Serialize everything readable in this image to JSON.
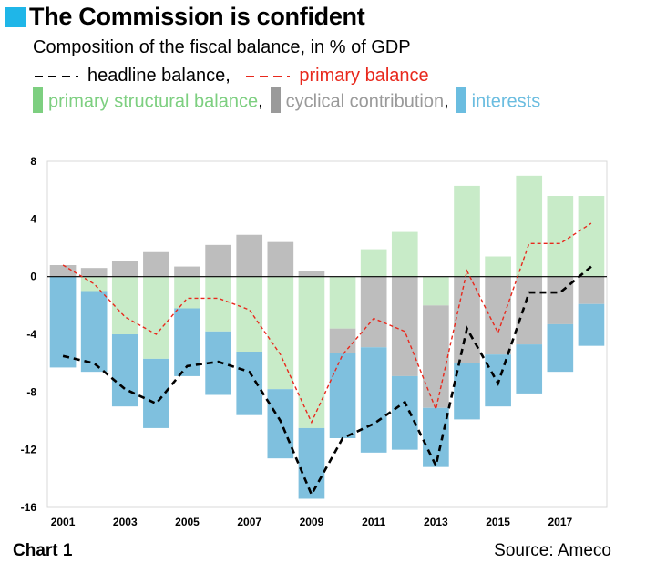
{
  "header": {
    "title": "The Commission is confident",
    "subtitle": "Composition of the fiscal balance, in % of GDP",
    "accent_color": "#1fb6e8"
  },
  "legend": {
    "headline": "headline balance,",
    "primary": "primary balance",
    "structural": "primary structural balance",
    "cyclical": "cyclical contribution",
    "interests": "interests",
    "sep": ","
  },
  "footer": {
    "chart_label": "Chart 1",
    "source": "Source: Ameco"
  },
  "chart_data": {
    "type": "bar",
    "stacked": true,
    "years": [
      2001,
      2002,
      2003,
      2004,
      2005,
      2006,
      2007,
      2008,
      2009,
      2010,
      2011,
      2012,
      2013,
      2014,
      2015,
      2016,
      2017,
      2018
    ],
    "xticks": [
      "2001",
      "2003",
      "2005",
      "2007",
      "2009",
      "2011",
      "2013",
      "2015",
      "2017"
    ],
    "yticks": [
      "8",
      "4",
      "0",
      "-4",
      "-8",
      "-12",
      "-16"
    ],
    "ylim": [
      -16,
      8
    ],
    "series": [
      {
        "name": "primary structural balance",
        "color": "#c8ebc8",
        "values": [
          0.0,
          -1.0,
          -4.0,
          -5.7,
          -2.2,
          -3.8,
          -5.2,
          -7.8,
          -10.5,
          -3.6,
          1.9,
          3.1,
          -2.0,
          6.3,
          1.4,
          7.0,
          5.6,
          5.6
        ]
      },
      {
        "name": "cyclical contribution",
        "color": "#bdbdbd",
        "values": [
          0.8,
          0.6,
          1.1,
          1.7,
          0.7,
          2.2,
          2.9,
          2.4,
          0.4,
          -1.7,
          -4.9,
          -6.9,
          -7.1,
          -6.0,
          -5.4,
          -4.7,
          -3.3,
          -1.9
        ]
      },
      {
        "name": "interests",
        "color": "#7fc0de",
        "values": [
          -6.3,
          -5.6,
          -5.0,
          -4.8,
          -4.7,
          -4.4,
          -4.4,
          -4.8,
          -4.9,
          -5.9,
          -7.3,
          -5.1,
          -4.1,
          -3.9,
          -3.6,
          -3.4,
          -3.3,
          -2.9
        ]
      }
    ],
    "lines": [
      {
        "name": "headline balance",
        "color": "#000000",
        "values": [
          -5.5,
          -6.0,
          -7.8,
          -8.8,
          -6.2,
          -5.9,
          -6.6,
          -10.0,
          -15.1,
          -11.2,
          -10.2,
          -8.7,
          -13.1,
          -3.6,
          -7.4,
          -1.1,
          -1.1,
          0.7
        ]
      },
      {
        "name": "primary balance",
        "color": "#e8291d",
        "values": [
          0.8,
          -0.5,
          -2.8,
          -4.0,
          -1.5,
          -1.5,
          -2.3,
          -5.4,
          -10.1,
          -5.4,
          -2.9,
          -3.8,
          -9.2,
          0.4,
          -3.9,
          2.3,
          2.3,
          3.7
        ]
      }
    ]
  }
}
